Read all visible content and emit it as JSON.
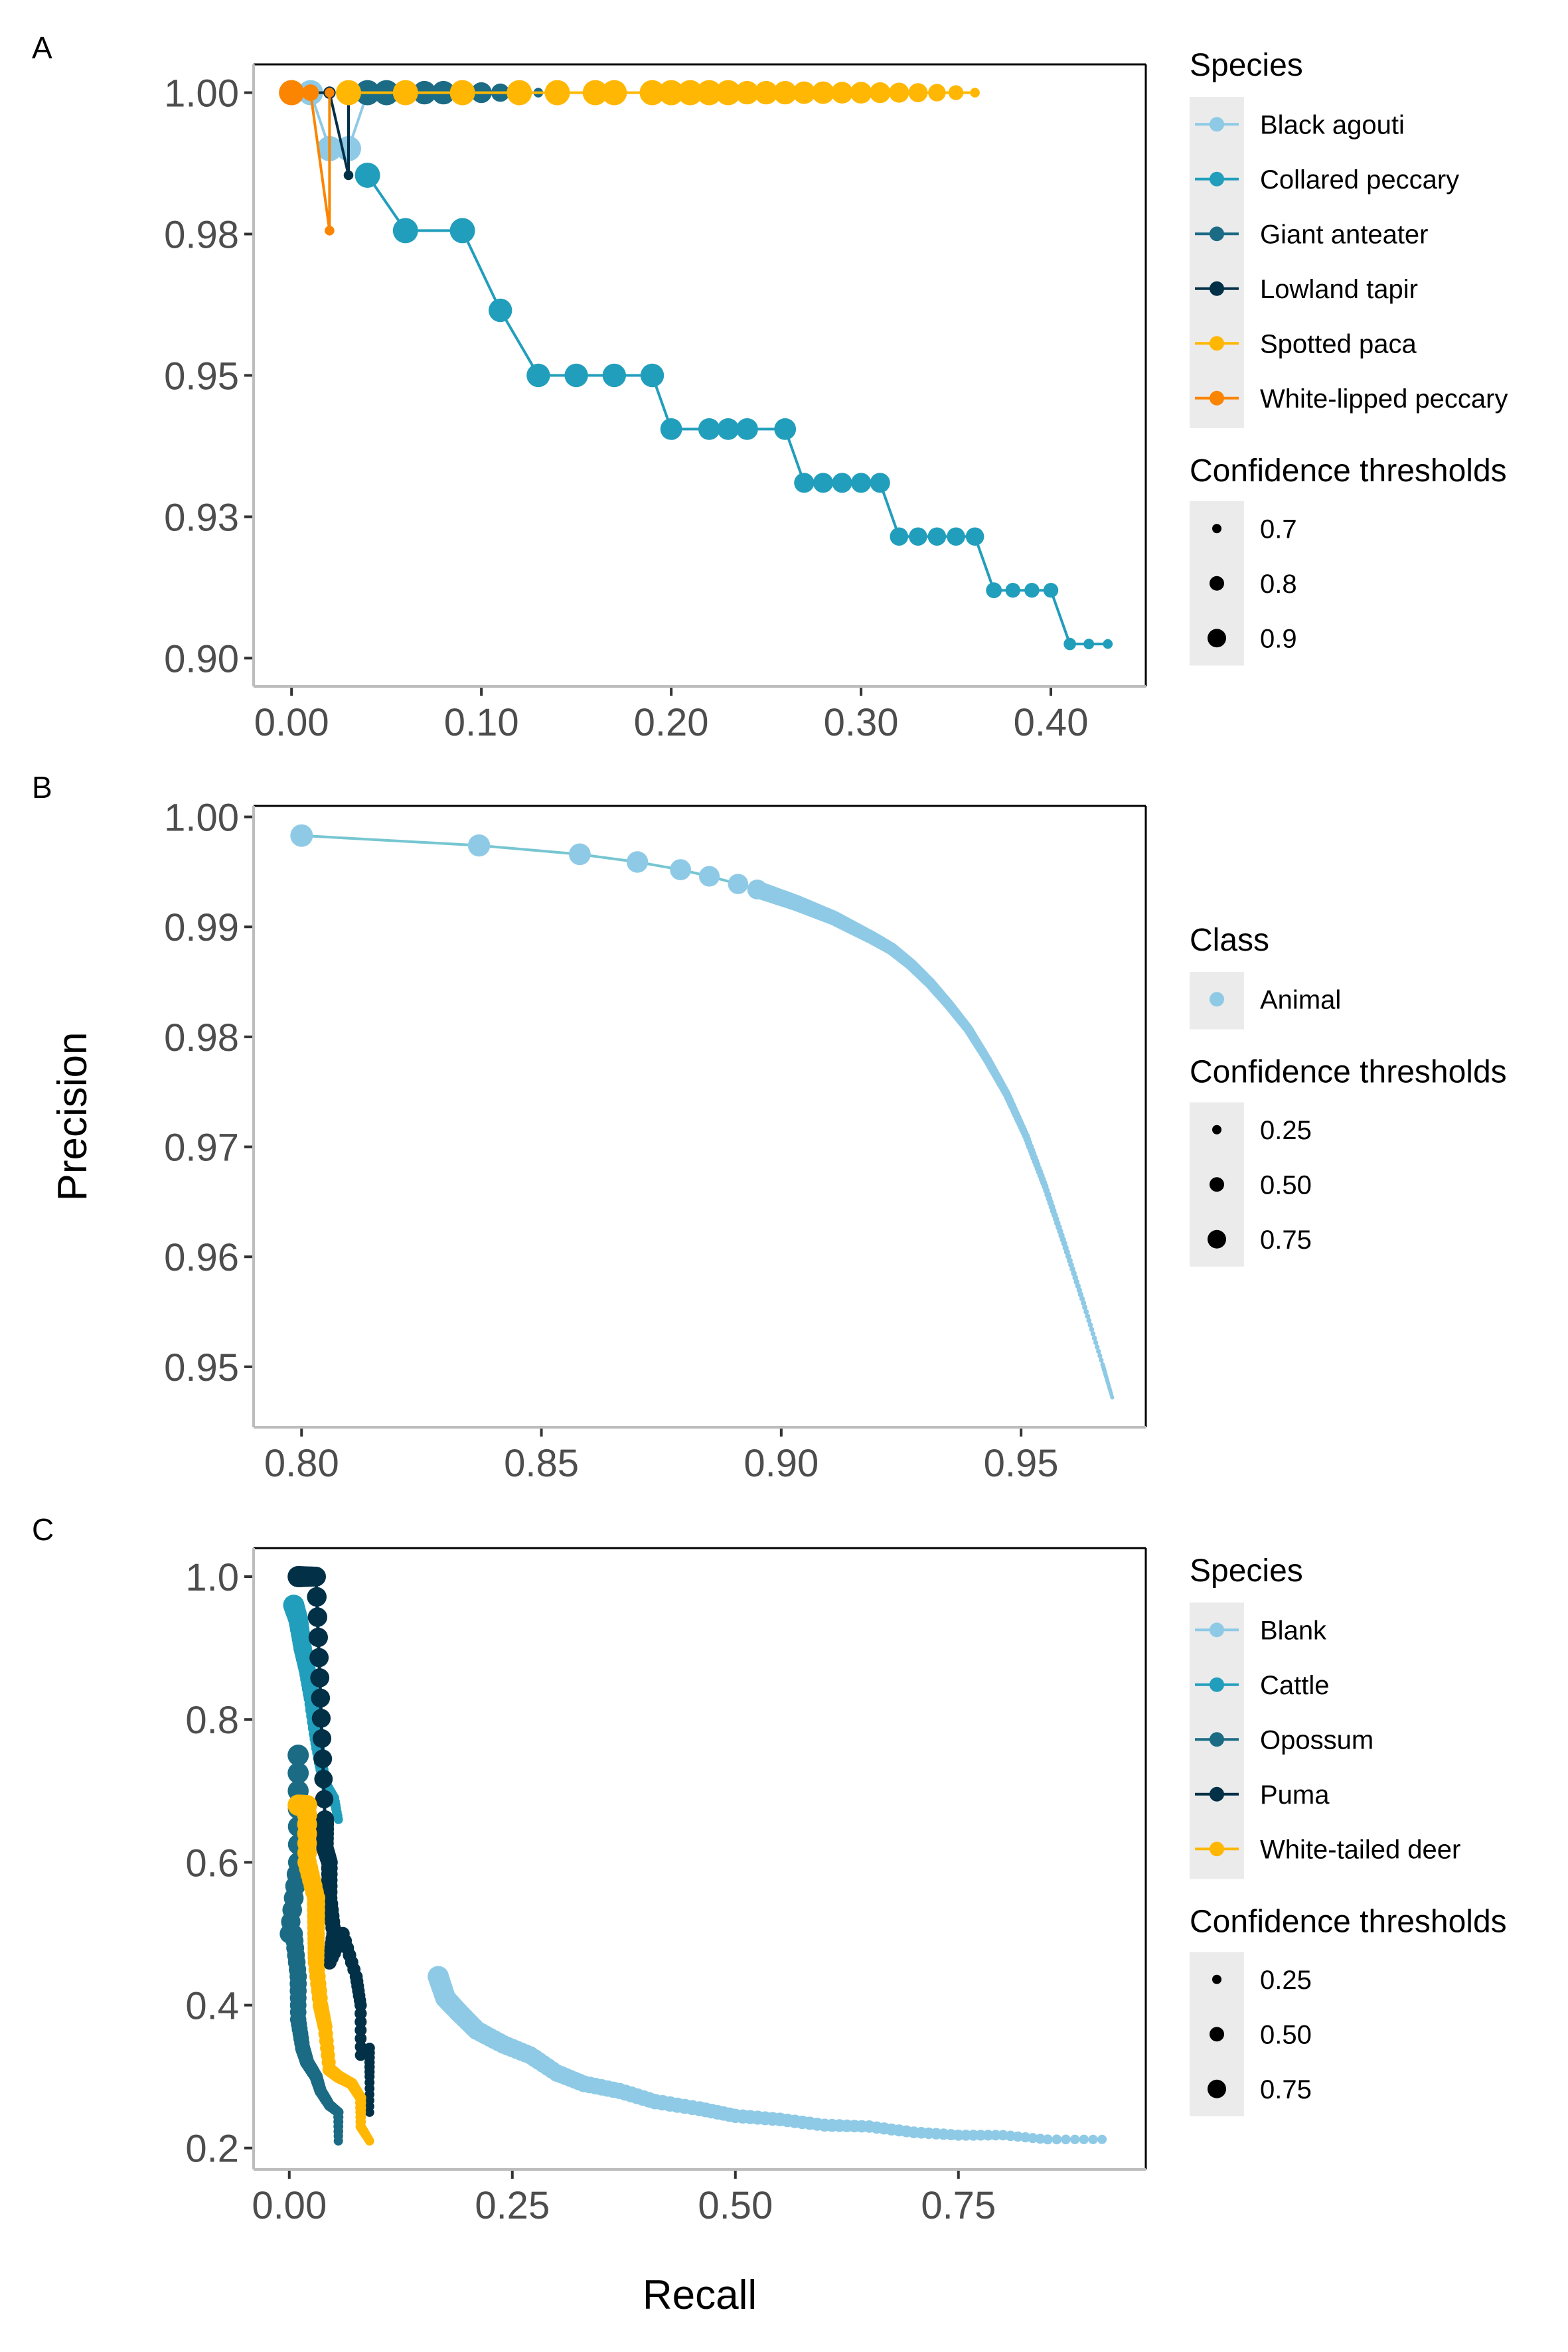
{
  "figure": {
    "shared_xlabel": "Recall",
    "shared_ylabel": "Precision"
  },
  "chart_data": [
    {
      "panel": "A",
      "type": "line",
      "xlabel": "Recall",
      "ylabel": "Precision",
      "xlim": [
        -0.02,
        0.45
      ],
      "ylim": [
        0.895,
        1.005
      ],
      "x_ticks": [
        0.0,
        0.1,
        0.2,
        0.3,
        0.4
      ],
      "x_tick_labels": [
        "0.00",
        "0.10",
        "0.20",
        "0.30",
        "0.40"
      ],
      "y_ticks": [
        1.0,
        0.975,
        0.95,
        0.925,
        0.9
      ],
      "y_tick_labels": [
        "1.00",
        "0.98",
        "0.95",
        "0.93",
        "0.90"
      ],
      "grid": false,
      "legend": {
        "placement": "right",
        "color_title": "Species",
        "size_title": "Confidence thresholds",
        "size_levels": [
          "0.7",
          "0.8",
          "0.9"
        ]
      },
      "series": [
        {
          "name": "Black agouti",
          "color": "#8ecae6",
          "points": [
            [
              0.0,
              1.0,
              0.9
            ],
            [
              0.01,
              1.0,
              0.9
            ],
            [
              0.02,
              0.9901,
              0.9
            ],
            [
              0.03,
              0.9901,
              0.9
            ],
            [
              0.04,
              1.0,
              0.85
            ]
          ]
        },
        {
          "name": "Collared peccary",
          "color": "#219ebc",
          "points": [
            [
              0.04,
              0.9854,
              0.9
            ],
            [
              0.06,
              0.9756,
              0.9
            ],
            [
              0.09,
              0.9756,
              0.9
            ],
            [
              0.11,
              0.9615,
              0.88
            ],
            [
              0.13,
              0.95,
              0.88
            ],
            [
              0.15,
              0.95,
              0.88
            ],
            [
              0.17,
              0.95,
              0.88
            ],
            [
              0.19,
              0.95,
              0.88
            ],
            [
              0.2,
              0.9405,
              0.86
            ],
            [
              0.22,
              0.9405,
              0.86
            ],
            [
              0.23,
              0.9405,
              0.86
            ],
            [
              0.24,
              0.9405,
              0.86
            ],
            [
              0.26,
              0.9405,
              0.86
            ],
            [
              0.27,
              0.931,
              0.84
            ],
            [
              0.28,
              0.931,
              0.84
            ],
            [
              0.29,
              0.931,
              0.84
            ],
            [
              0.3,
              0.931,
              0.84
            ],
            [
              0.31,
              0.931,
              0.84
            ],
            [
              0.32,
              0.9215,
              0.82
            ],
            [
              0.33,
              0.9215,
              0.82
            ],
            [
              0.34,
              0.9215,
              0.82
            ],
            [
              0.35,
              0.9215,
              0.82
            ],
            [
              0.36,
              0.9215,
              0.82
            ],
            [
              0.37,
              0.912,
              0.79
            ],
            [
              0.38,
              0.912,
              0.78
            ],
            [
              0.39,
              0.912,
              0.78
            ],
            [
              0.4,
              0.912,
              0.78
            ],
            [
              0.41,
              0.9025,
              0.75
            ],
            [
              0.42,
              0.9025,
              0.73
            ],
            [
              0.43,
              0.9025,
              0.72
            ]
          ]
        },
        {
          "name": "Giant anteater",
          "color": "#1b6b85",
          "points": [
            [
              0.04,
              1.0,
              0.9
            ],
            [
              0.05,
              1.0,
              0.9
            ],
            [
              0.07,
              1.0,
              0.88
            ],
            [
              0.08,
              1.0,
              0.88
            ],
            [
              0.1,
              1.0,
              0.85
            ],
            [
              0.11,
              1.0,
              0.82
            ],
            [
              0.13,
              1.0,
              0.72
            ]
          ]
        },
        {
          "name": "Lowland tapir",
          "color": "#023047",
          "points": [
            [
              0.01,
              1.0,
              0.75
            ],
            [
              0.02,
              1.0,
              0.75
            ],
            [
              0.03,
              0.9854,
              0.72
            ],
            [
              0.03,
              1.0,
              0.72
            ]
          ]
        },
        {
          "name": "Spotted paca",
          "color": "#ffb703",
          "points": [
            [
              0.03,
              1.0,
              0.9
            ],
            [
              0.06,
              1.0,
              0.9
            ],
            [
              0.09,
              1.0,
              0.9
            ],
            [
              0.12,
              1.0,
              0.9
            ],
            [
              0.14,
              1.0,
              0.9
            ],
            [
              0.16,
              1.0,
              0.9
            ],
            [
              0.17,
              1.0,
              0.9
            ],
            [
              0.19,
              1.0,
              0.9
            ],
            [
              0.2,
              1.0,
              0.9
            ],
            [
              0.21,
              1.0,
              0.9
            ],
            [
              0.22,
              1.0,
              0.9
            ],
            [
              0.23,
              1.0,
              0.9
            ],
            [
              0.24,
              1.0,
              0.88
            ],
            [
              0.25,
              1.0,
              0.88
            ],
            [
              0.26,
              1.0,
              0.88
            ],
            [
              0.27,
              1.0,
              0.87
            ],
            [
              0.28,
              1.0,
              0.87
            ],
            [
              0.29,
              1.0,
              0.86
            ],
            [
              0.3,
              1.0,
              0.86
            ],
            [
              0.31,
              1.0,
              0.85
            ],
            [
              0.32,
              1.0,
              0.84
            ],
            [
              0.33,
              1.0,
              0.83
            ],
            [
              0.34,
              1.0,
              0.81
            ],
            [
              0.35,
              1.0,
              0.78
            ],
            [
              0.36,
              1.0,
              0.72
            ]
          ]
        },
        {
          "name": "White-lipped peccary",
          "color": "#fb8500",
          "points": [
            [
              0.0,
              1.0,
              0.9
            ],
            [
              0.01,
              1.0,
              0.8
            ],
            [
              0.02,
              0.9756,
              0.72
            ],
            [
              0.02,
              1.0,
              0.72
            ]
          ]
        }
      ]
    },
    {
      "panel": "B",
      "type": "line",
      "xlabel": "Recall",
      "ylabel": "Precision",
      "xlim": [
        0.79,
        0.976
      ],
      "ylim": [
        0.9445,
        1.001
      ],
      "x_ticks": [
        0.8,
        0.85,
        0.9,
        0.95
      ],
      "x_tick_labels": [
        "0.80",
        "0.85",
        "0.90",
        "0.95"
      ],
      "y_ticks": [
        1.0,
        0.99,
        0.98,
        0.97,
        0.96,
        0.95
      ],
      "y_tick_labels": [
        "1.00",
        "0.99",
        "0.98",
        "0.97",
        "0.96",
        "0.95"
      ],
      "grid": false,
      "legend": {
        "placement": "right",
        "color_title": "Class",
        "size_title": "Confidence thresholds",
        "size_levels": [
          "0.25",
          "0.50",
          "0.75"
        ]
      },
      "series": [
        {
          "name": "Animal",
          "color": "#8ecae6",
          "curve": [
            [
              0.8,
              0.9983
            ],
            [
              0.837,
              0.9974
            ],
            [
              0.858,
              0.9966
            ],
            [
              0.87,
              0.9959
            ],
            [
              0.879,
              0.9952
            ],
            [
              0.885,
              0.9946
            ],
            [
              0.891,
              0.9939
            ],
            [
              0.895,
              0.9934
            ],
            [
              0.899,
              0.9928
            ],
            [
              0.903,
              0.9922
            ],
            [
              0.907,
              0.9915
            ],
            [
              0.911,
              0.9908
            ],
            [
              0.915,
              0.9899
            ],
            [
              0.919,
              0.989
            ],
            [
              0.923,
              0.988
            ],
            [
              0.927,
              0.9866
            ],
            [
              0.931,
              0.9849
            ],
            [
              0.935,
              0.9829
            ],
            [
              0.939,
              0.9807
            ],
            [
              0.943,
              0.9779
            ],
            [
              0.947,
              0.9748
            ],
            [
              0.951,
              0.971
            ],
            [
              0.955,
              0.9664
            ],
            [
              0.959,
              0.9612
            ],
            [
              0.963,
              0.9558
            ],
            [
              0.967,
              0.9502
            ],
            [
              0.969,
              0.9472
            ]
          ],
          "confidence_range": [
            0.25,
            0.75
          ]
        }
      ]
    },
    {
      "panel": "C",
      "type": "line",
      "xlabel": "Recall",
      "ylabel": "Precision",
      "xlim": [
        -0.04,
        0.96
      ],
      "ylim": [
        0.17,
        1.04
      ],
      "x_ticks": [
        0.0,
        0.25,
        0.5,
        0.75
      ],
      "x_tick_labels": [
        "0.00",
        "0.25",
        "0.50",
        "0.75"
      ],
      "y_ticks": [
        1.0,
        0.8,
        0.6,
        0.4,
        0.2
      ],
      "y_tick_labels": [
        "1.0",
        "0.8",
        "0.6",
        "0.4",
        "0.2"
      ],
      "grid": false,
      "legend": {
        "placement": "right",
        "color_title": "Species",
        "size_title": "Confidence thresholds",
        "size_levels": [
          "0.25",
          "0.50",
          "0.75"
        ]
      },
      "series": [
        {
          "name": "Blank",
          "color": "#8ecae6",
          "curve": [
            [
              0.167,
              0.44
            ],
            [
              0.175,
              0.41
            ],
            [
              0.19,
              0.39
            ],
            [
              0.21,
              0.365
            ],
            [
              0.24,
              0.345
            ],
            [
              0.27,
              0.33
            ],
            [
              0.3,
              0.305
            ],
            [
              0.33,
              0.29
            ],
            [
              0.37,
              0.28
            ],
            [
              0.41,
              0.265
            ],
            [
              0.46,
              0.255
            ],
            [
              0.5,
              0.245
            ],
            [
              0.55,
              0.24
            ],
            [
              0.6,
              0.232
            ],
            [
              0.65,
              0.23
            ],
            [
              0.7,
              0.222
            ],
            [
              0.75,
              0.218
            ],
            [
              0.8,
              0.218
            ],
            [
              0.85,
              0.212
            ],
            [
              0.911,
              0.212
            ]
          ],
          "confidence_range": [
            0.25,
            0.75
          ]
        },
        {
          "name": "Cattle",
          "color": "#219ebc",
          "curve": [
            [
              0.005,
              0.96
            ],
            [
              0.01,
              0.94
            ],
            [
              0.015,
              0.9
            ],
            [
              0.02,
              0.87
            ],
            [
              0.025,
              0.83
            ],
            [
              0.03,
              0.78
            ],
            [
              0.035,
              0.74
            ],
            [
              0.04,
              0.71
            ],
            [
              0.05,
              0.69
            ],
            [
              0.055,
              0.66
            ]
          ],
          "confidence_range": [
            0.25,
            0.75
          ]
        },
        {
          "name": "Opossum",
          "color": "#1b6b85",
          "curve": [
            [
              0.01,
              0.75
            ],
            [
              0.01,
              0.6
            ],
            [
              0.0,
              0.5
            ],
            [
              0.005,
              0.5
            ],
            [
              0.01,
              0.44
            ],
            [
              0.01,
              0.38
            ],
            [
              0.015,
              0.34
            ],
            [
              0.02,
              0.32
            ],
            [
              0.03,
              0.3
            ],
            [
              0.035,
              0.28
            ],
            [
              0.045,
              0.26
            ],
            [
              0.055,
              0.25
            ],
            [
              0.055,
              0.21
            ]
          ],
          "confidence_range": [
            0.25,
            0.75
          ]
        },
        {
          "name": "Puma",
          "color": "#023047",
          "curve": [
            [
              0.01,
              1.0
            ],
            [
              0.02,
              1.0
            ],
            [
              0.03,
              1.0
            ],
            [
              0.035,
              0.83
            ],
            [
              0.04,
              0.66
            ],
            [
              0.04,
              0.62
            ],
            [
              0.045,
              0.6
            ],
            [
              0.045,
              0.55
            ],
            [
              0.05,
              0.5
            ],
            [
              0.045,
              0.46
            ],
            [
              0.06,
              0.5
            ],
            [
              0.075,
              0.44
            ],
            [
              0.08,
              0.4
            ],
            [
              0.08,
              0.33
            ],
            [
              0.09,
              0.34
            ],
            [
              0.09,
              0.3
            ],
            [
              0.09,
              0.25
            ]
          ],
          "confidence_range": [
            0.25,
            0.75
          ]
        },
        {
          "name": "White-tailed deer",
          "color": "#ffb703",
          "curve": [
            [
              0.01,
              0.68
            ],
            [
              0.02,
              0.68
            ],
            [
              0.02,
              0.6
            ],
            [
              0.03,
              0.55
            ],
            [
              0.03,
              0.5
            ],
            [
              0.03,
              0.46
            ],
            [
              0.035,
              0.4
            ],
            [
              0.04,
              0.37
            ],
            [
              0.045,
              0.31
            ],
            [
              0.055,
              0.3
            ],
            [
              0.07,
              0.29
            ],
            [
              0.08,
              0.27
            ],
            [
              0.08,
              0.23
            ],
            [
              0.09,
              0.21
            ]
          ],
          "confidence_range": [
            0.25,
            0.75
          ]
        }
      ]
    }
  ]
}
